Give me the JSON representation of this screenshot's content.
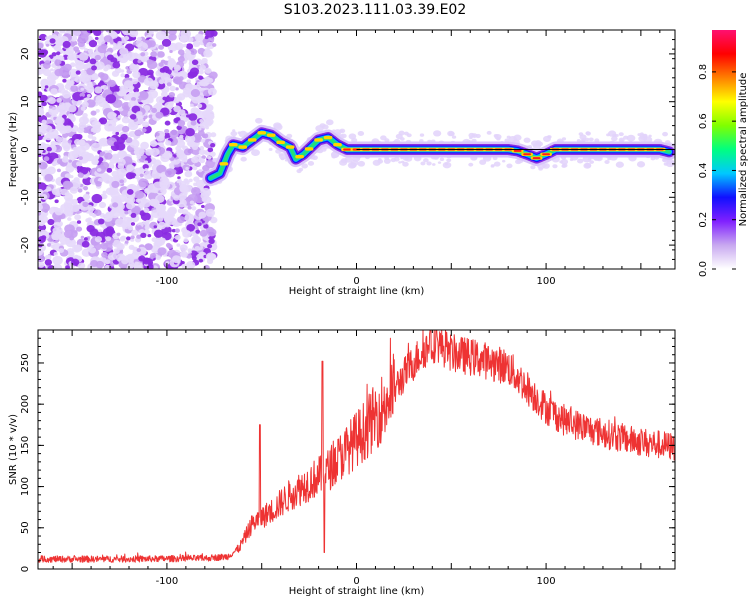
{
  "title": "S103.2023.111.03.39.E02",
  "chart_data": [
    {
      "type": "heatmap",
      "xlabel": "Height of straight line (km)",
      "ylabel": "Frequency (Hz)",
      "xlim": [
        -168,
        168
      ],
      "ylim": [
        -25,
        25
      ],
      "xticks": [
        -100,
        0,
        100
      ],
      "yticks": [
        -20,
        -10,
        0,
        10,
        20
      ],
      "colorbar": {
        "label": "Normalized spectral amplitude",
        "ticks": [
          0.0,
          0.2,
          0.4,
          0.6,
          0.8
        ],
        "range": [
          0,
          0.97
        ],
        "colors": [
          "#ffffff",
          "#c8a8f0",
          "#8020ff",
          "#1010ff",
          "#00c8ff",
          "#00ff80",
          "#80ff00",
          "#ffff00",
          "#ff8000",
          "#ff0000",
          "#ff1070"
        ]
      },
      "noise_region_x": [
        -168,
        -75
      ],
      "ridge": [
        [
          -77,
          -6
        ],
        [
          -72,
          -5
        ],
        [
          -68,
          -1
        ],
        [
          -65,
          1
        ],
        [
          -60,
          0.5
        ],
        [
          -55,
          2
        ],
        [
          -50,
          3.5
        ],
        [
          -45,
          3
        ],
        [
          -40,
          1.5
        ],
        [
          -35,
          0.5
        ],
        [
          -32,
          -2
        ],
        [
          -28,
          -1
        ],
        [
          -24,
          0.5
        ],
        [
          -20,
          2
        ],
        [
          -15,
          2.5
        ],
        [
          -10,
          1
        ],
        [
          -5,
          0
        ],
        [
          0,
          0
        ],
        [
          20,
          0
        ],
        [
          40,
          0
        ],
        [
          60,
          0
        ],
        [
          80,
          0
        ],
        [
          85,
          -0.3
        ],
        [
          90,
          -1
        ],
        [
          95,
          -1.8
        ],
        [
          100,
          -1
        ],
        [
          105,
          0
        ],
        [
          120,
          0
        ],
        [
          140,
          0
        ],
        [
          160,
          0
        ],
        [
          165,
          -0.5
        ]
      ]
    },
    {
      "type": "line",
      "xlabel": "Height of straight line (km)",
      "ylabel": "SNR (10 * v/v)",
      "xlim": [
        -168,
        168
      ],
      "ylim": [
        0,
        290
      ],
      "xticks": [
        -100,
        0,
        100
      ],
      "yticks": [
        0,
        50,
        100,
        150,
        200,
        250
      ],
      "color": "#ee3333",
      "envelope": [
        [
          -168,
          12
        ],
        [
          -120,
          12
        ],
        [
          -80,
          13
        ],
        [
          -68,
          15
        ],
        [
          -62,
          25
        ],
        [
          -55,
          55
        ],
        [
          -45,
          70
        ],
        [
          -35,
          90
        ],
        [
          -25,
          105
        ],
        [
          -15,
          120
        ],
        [
          -5,
          145
        ],
        [
          5,
          170
        ],
        [
          15,
          200
        ],
        [
          25,
          235
        ],
        [
          35,
          265
        ],
        [
          42,
          275
        ],
        [
          50,
          262
        ],
        [
          65,
          255
        ],
        [
          80,
          245
        ],
        [
          90,
          220
        ],
        [
          100,
          195
        ],
        [
          110,
          180
        ],
        [
          125,
          168
        ],
        [
          145,
          156
        ],
        [
          168,
          148
        ]
      ],
      "spikes": [
        {
          "x": -51,
          "y": 175
        },
        {
          "x": -18,
          "y": 252
        },
        {
          "x": -17,
          "y": 20
        },
        {
          "x": 39,
          "y": 290
        }
      ]
    }
  ]
}
